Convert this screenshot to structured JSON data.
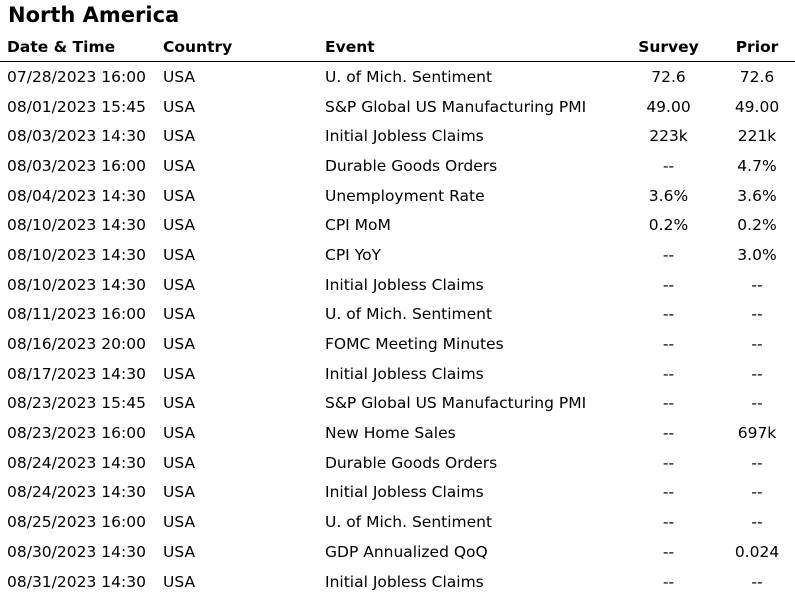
{
  "title": "North America",
  "columns": {
    "date": "Date & Time",
    "country": "Country",
    "event": "Event",
    "survey": "Survey",
    "prior": "Prior"
  },
  "rows": [
    {
      "date": "07/28/2023 16:00",
      "country": "USA",
      "event": "U. of Mich. Sentiment",
      "survey": "72.6",
      "prior": "72.6"
    },
    {
      "date": "08/01/2023 15:45",
      "country": "USA",
      "event": "S&P Global US Manufacturing PMI",
      "survey": "49.00",
      "prior": "49.00"
    },
    {
      "date": "08/03/2023 14:30",
      "country": "USA",
      "event": "Initial Jobless Claims",
      "survey": "223k",
      "prior": "221k"
    },
    {
      "date": "08/03/2023 16:00",
      "country": "USA",
      "event": "Durable Goods Orders",
      "survey": "--",
      "prior": "4.7%"
    },
    {
      "date": "08/04/2023 14:30",
      "country": "USA",
      "event": "Unemployment Rate",
      "survey": "3.6%",
      "prior": "3.6%"
    },
    {
      "date": "08/10/2023 14:30",
      "country": "USA",
      "event": "CPI MoM",
      "survey": "0.2%",
      "prior": "0.2%"
    },
    {
      "date": "08/10/2023 14:30",
      "country": "USA",
      "event": "CPI YoY",
      "survey": "--",
      "prior": "3.0%"
    },
    {
      "date": "08/10/2023 14:30",
      "country": "USA",
      "event": "Initial Jobless Claims",
      "survey": "--",
      "prior": "--"
    },
    {
      "date": "08/11/2023 16:00",
      "country": "USA",
      "event": "U. of Mich. Sentiment",
      "survey": "--",
      "prior": "--"
    },
    {
      "date": "08/16/2023 20:00",
      "country": "USA",
      "event": "FOMC Meeting Minutes",
      "survey": "--",
      "prior": "--"
    },
    {
      "date": "08/17/2023 14:30",
      "country": "USA",
      "event": "Initial Jobless Claims",
      "survey": "--",
      "prior": "--"
    },
    {
      "date": "08/23/2023 15:45",
      "country": "USA",
      "event": "S&P Global US Manufacturing PMI",
      "survey": "--",
      "prior": "--"
    },
    {
      "date": "08/23/2023 16:00",
      "country": "USA",
      "event": "New Home Sales",
      "survey": "--",
      "prior": "697k"
    },
    {
      "date": "08/24/2023 14:30",
      "country": "USA",
      "event": "Durable Goods Orders",
      "survey": "--",
      "prior": "--"
    },
    {
      "date": "08/24/2023 14:30",
      "country": "USA",
      "event": "Initial Jobless Claims",
      "survey": "--",
      "prior": "--"
    },
    {
      "date": "08/25/2023 16:00",
      "country": "USA",
      "event": "U. of Mich. Sentiment",
      "survey": "--",
      "prior": "--"
    },
    {
      "date": "08/30/2023 14:30",
      "country": "USA",
      "event": "GDP Annualized QoQ",
      "survey": "--",
      "prior": "0.024"
    },
    {
      "date": "08/31/2023 14:30",
      "country": "USA",
      "event": "Initial Jobless Claims",
      "survey": "--",
      "prior": "--"
    }
  ]
}
